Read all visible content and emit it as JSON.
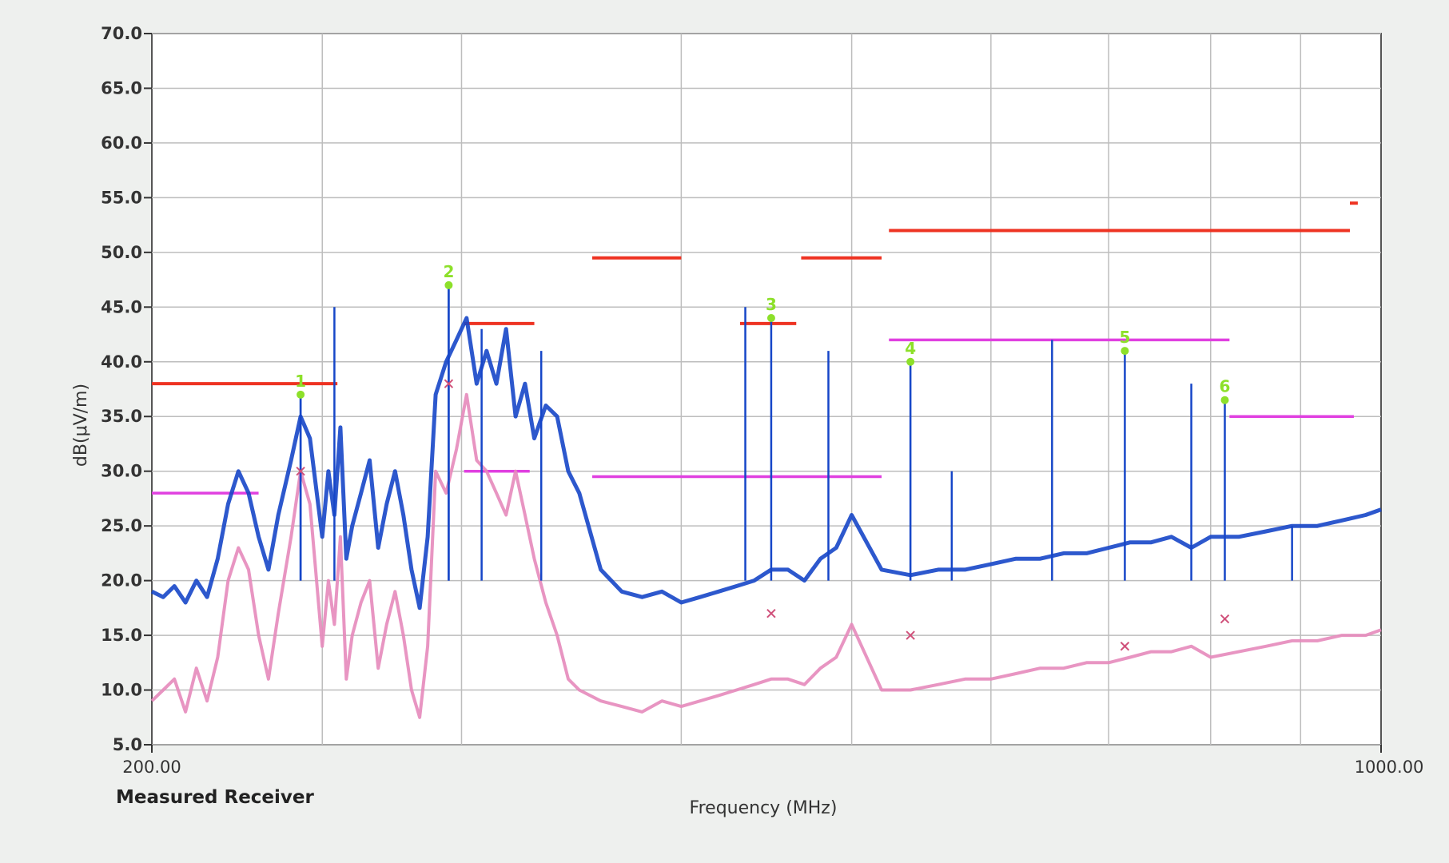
{
  "colors": {
    "peak_trace": "#1646c8",
    "avg_trace": "#e58abb",
    "qp_limit": "#ee3322",
    "avg_limit": "#e040e0",
    "marker": "#8de02a",
    "grid": "#bdbdbd"
  },
  "chart_data": {
    "type": "line",
    "title": "",
    "xlabel": "Frequency (MHz)",
    "ylabel": "dB(μV/m)",
    "receiver_label": "Measured Receiver",
    "xlim": [
      200,
      1000
    ],
    "ylim": [
      5,
      70
    ],
    "x_scale": "log",
    "grid": true,
    "x_tick_labels": [
      "200.00",
      "1000.00"
    ],
    "y_ticks": [
      5,
      10,
      15,
      20,
      25,
      30,
      35,
      40,
      45,
      50,
      55,
      60,
      65,
      70
    ],
    "y_tick_labels": [
      "5.0",
      "10.0",
      "15.0",
      "20.0",
      "25.0",
      "30.0",
      "35.0",
      "40.0",
      "45.0",
      "50.0",
      "55.0",
      "60.0",
      "65.0",
      "70.0"
    ],
    "series": [
      {
        "key": "peak",
        "x": [
          200,
          203,
          206,
          209,
          212,
          215,
          218,
          221,
          224,
          227,
          230,
          233,
          236,
          240,
          243,
          246,
          250,
          252,
          254,
          256,
          258,
          260,
          263,
          266,
          269,
          272,
          275,
          278,
          281,
          284,
          287,
          290,
          294,
          298,
          302,
          306,
          310,
          314,
          318,
          322,
          326,
          330,
          335,
          340,
          345,
          350,
          360,
          370,
          380,
          390,
          400,
          410,
          420,
          430,
          440,
          450,
          460,
          470,
          480,
          490,
          500,
          520,
          540,
          560,
          580,
          600,
          620,
          640,
          660,
          680,
          700,
          720,
          740,
          760,
          780,
          800,
          830,
          860,
          890,
          920,
          950,
          980,
          1000
        ],
        "y": [
          19,
          18.5,
          19.5,
          18,
          20,
          18.5,
          22,
          27,
          30,
          28,
          24,
          21,
          26,
          31,
          35,
          33,
          24,
          30,
          26,
          34,
          22,
          25,
          28,
          31,
          23,
          27,
          30,
          26,
          21,
          17.5,
          24,
          37,
          40,
          42,
          44,
          38,
          41,
          38,
          43,
          35,
          38,
          33,
          36,
          35,
          30,
          28,
          21,
          19,
          18.5,
          19,
          18,
          18.5,
          19,
          19.5,
          20,
          21,
          21,
          20,
          22,
          23,
          26,
          21,
          20.5,
          21,
          21,
          21.5,
          22,
          22,
          22.5,
          22.5,
          23,
          23.5,
          23.5,
          24,
          23,
          24,
          24,
          24.5,
          25,
          25,
          25.5,
          26,
          26.5
        ]
      },
      {
        "key": "average",
        "x": [
          200,
          203,
          206,
          209,
          212,
          215,
          218,
          221,
          224,
          227,
          230,
          233,
          236,
          240,
          243,
          246,
          250,
          252,
          254,
          256,
          258,
          260,
          263,
          266,
          269,
          272,
          275,
          278,
          281,
          284,
          287,
          290,
          294,
          298,
          302,
          306,
          310,
          314,
          318,
          322,
          326,
          330,
          335,
          340,
          345,
          350,
          360,
          370,
          380,
          390,
          400,
          410,
          420,
          430,
          440,
          450,
          460,
          470,
          480,
          490,
          500,
          520,
          540,
          560,
          580,
          600,
          620,
          640,
          660,
          680,
          700,
          720,
          740,
          760,
          780,
          800,
          830,
          860,
          890,
          920,
          950,
          980,
          1000
        ],
        "y": [
          9,
          10,
          11,
          8,
          12,
          9,
          13,
          20,
          23,
          21,
          15,
          11,
          17,
          24,
          30,
          27,
          14,
          20,
          16,
          24,
          11,
          15,
          18,
          20,
          12,
          16,
          19,
          15,
          10,
          7.5,
          14,
          30,
          28,
          32,
          37,
          31,
          30,
          28,
          26,
          30,
          26,
          22,
          18,
          15,
          11,
          10,
          9,
          8.5,
          8,
          9,
          8.5,
          9,
          9.5,
          10,
          10.5,
          11,
          11,
          10.5,
          12,
          13,
          16,
          10,
          10,
          10.5,
          11,
          11,
          11.5,
          12,
          12,
          12.5,
          12.5,
          13,
          13.5,
          13.5,
          14,
          13,
          13.5,
          14,
          14.5,
          14.5,
          15,
          15,
          15.5
        ]
      }
    ],
    "spikes": [
      {
        "x": 243,
        "top": 37
      },
      {
        "x": 254,
        "top": 45
      },
      {
        "x": 295,
        "top": 47
      },
      {
        "x": 308,
        "top": 43
      },
      {
        "x": 333,
        "top": 41
      },
      {
        "x": 435,
        "top": 45
      },
      {
        "x": 485,
        "top": 41
      },
      {
        "x": 650,
        "top": 42
      },
      {
        "x": 780,
        "top": 38
      },
      {
        "x": 570,
        "top": 30
      },
      {
        "x": 890,
        "top": 25
      }
    ],
    "limit_segments_qp": [
      {
        "x1": 200,
        "x2": 255,
        "y": 38
      },
      {
        "x1": 301,
        "x2": 330,
        "y": 43.5
      },
      {
        "x1": 356,
        "x2": 400,
        "y": 49.5
      },
      {
        "x1": 432,
        "x2": 465,
        "y": 43.5
      },
      {
        "x1": 468,
        "x2": 520,
        "y": 49.5
      },
      {
        "x1": 525,
        "x2": 960,
        "y": 52
      },
      {
        "x1": 960,
        "x2": 970,
        "y": 54.5
      }
    ],
    "limit_segments_avg": [
      {
        "x1": 200,
        "x2": 230,
        "y": 28
      },
      {
        "x1": 301,
        "x2": 328,
        "y": 30
      },
      {
        "x1": 356,
        "x2": 520,
        "y": 29.5
      },
      {
        "x1": 525,
        "x2": 820,
        "y": 42
      },
      {
        "x1": 820,
        "x2": 965,
        "y": 35
      }
    ],
    "markers": [
      {
        "label": "1",
        "x": 243,
        "peak": 37,
        "avg": 30
      },
      {
        "label": "2",
        "x": 295,
        "peak": 47,
        "avg": 38
      },
      {
        "label": "3",
        "x": 450,
        "peak": 44,
        "avg": 17
      },
      {
        "label": "4",
        "x": 540,
        "peak": 40,
        "avg": 15
      },
      {
        "label": "5",
        "x": 715,
        "peak": 41,
        "avg": 14
      },
      {
        "label": "6",
        "x": 815,
        "peak": 36.5,
        "avg": 16.5
      }
    ]
  }
}
